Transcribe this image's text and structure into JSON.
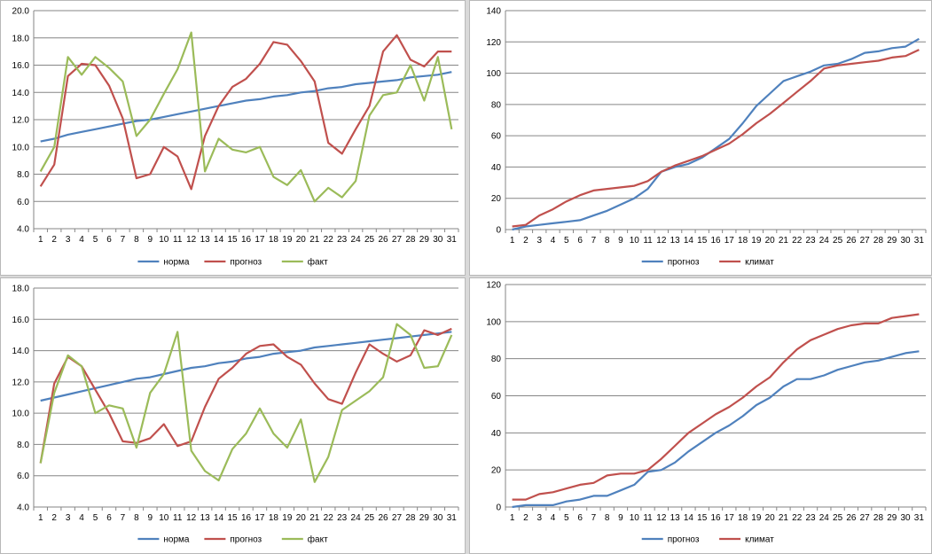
{
  "colors": {
    "blue": "#4f81bd",
    "red": "#c0504d",
    "green": "#9bbb59",
    "grid": "#868686",
    "axis": "#868686"
  },
  "chart_data": [
    {
      "type": "line",
      "categories": [
        1,
        2,
        3,
        4,
        5,
        6,
        7,
        8,
        9,
        10,
        11,
        12,
        13,
        14,
        15,
        16,
        17,
        18,
        19,
        20,
        21,
        22,
        23,
        24,
        25,
        26,
        27,
        28,
        29,
        30,
        31
      ],
      "ylim": [
        4.0,
        20.0
      ],
      "ystep": 2,
      "ydecimals": 1,
      "grid": true,
      "legend": "bottom",
      "yticks": [
        "4.0",
        "6.0",
        "8.0",
        "10.0",
        "12.0",
        "14.0",
        "16.0",
        "18.0",
        "20.0"
      ],
      "series": [
        {
          "name": "норма",
          "color": "#4f81bd",
          "values": [
            10.4,
            10.6,
            10.9,
            11.1,
            11.3,
            11.5,
            11.7,
            11.9,
            12.0,
            12.2,
            12.4,
            12.6,
            12.8,
            13.0,
            13.2,
            13.4,
            13.5,
            13.7,
            13.8,
            14.0,
            14.1,
            14.3,
            14.4,
            14.6,
            14.7,
            14.8,
            14.9,
            15.1,
            15.2,
            15.3,
            15.5
          ]
        },
        {
          "name": "прогноз",
          "color": "#c0504d",
          "values": [
            7.1,
            8.7,
            15.2,
            16.1,
            16.0,
            14.5,
            12.1,
            7.7,
            8.0,
            10.0,
            9.3,
            6.9,
            10.8,
            13.0,
            14.4,
            15.0,
            16.1,
            17.7,
            17.5,
            16.3,
            14.8,
            10.3,
            9.5,
            11.3,
            13.0,
            17.0,
            18.2,
            16.4,
            15.9,
            17.0,
            17.0
          ]
        },
        {
          "name": "факт",
          "color": "#9bbb59",
          "values": [
            8.2,
            10.0,
            16.6,
            15.3,
            16.6,
            15.8,
            14.8,
            10.8,
            12.0,
            13.9,
            15.7,
            18.4,
            8.2,
            10.6,
            9.8,
            9.6,
            10.0,
            7.8,
            7.2,
            8.3,
            6.0,
            7.0,
            6.3,
            7.5,
            12.3,
            13.8,
            14.0,
            16.0,
            13.4,
            16.6,
            11.3
          ]
        }
      ]
    },
    {
      "type": "line",
      "categories": [
        1,
        2,
        3,
        4,
        5,
        6,
        7,
        8,
        9,
        10,
        11,
        12,
        13,
        14,
        15,
        16,
        17,
        18,
        19,
        20,
        21,
        22,
        23,
        24,
        25,
        26,
        27,
        28,
        29,
        30,
        31
      ],
      "ylim": [
        0,
        140
      ],
      "ystep": 20,
      "ydecimals": 0,
      "grid": true,
      "legend": "bottom",
      "yticks": [
        "0",
        "20",
        "40",
        "60",
        "80",
        "100",
        "120",
        "140"
      ],
      "series": [
        {
          "name": "прогноз",
          "color": "#4f81bd",
          "values": [
            0,
            2,
            3,
            4,
            5,
            6,
            9,
            12,
            16,
            20,
            26,
            37,
            40,
            42,
            46,
            52,
            58,
            68,
            79,
            87,
            95,
            98,
            101,
            105,
            106,
            109,
            113,
            114,
            116,
            117,
            122
          ]
        },
        {
          "name": "климат",
          "color": "#c0504d",
          "values": [
            2,
            3,
            9,
            13,
            18,
            22,
            25,
            26,
            27,
            28,
            31,
            37,
            41,
            44,
            47,
            51,
            55,
            61,
            68,
            74,
            81,
            88,
            95,
            103,
            105,
            106,
            107,
            108,
            110,
            111,
            115
          ]
        }
      ]
    },
    {
      "type": "line",
      "categories": [
        1,
        2,
        3,
        4,
        5,
        6,
        7,
        8,
        9,
        10,
        11,
        12,
        13,
        14,
        15,
        16,
        17,
        18,
        19,
        20,
        21,
        22,
        23,
        24,
        25,
        26,
        27,
        28,
        29,
        30,
        31
      ],
      "ylim": [
        4.0,
        18.0
      ],
      "ystep": 2,
      "ydecimals": 1,
      "grid": true,
      "legend": "bottom",
      "yticks": [
        "4.0",
        "6.0",
        "8.0",
        "10.0",
        "12.0",
        "14.0",
        "16.0",
        "18.0"
      ],
      "series": [
        {
          "name": "норма",
          "color": "#4f81bd",
          "values": [
            10.8,
            11.0,
            11.2,
            11.4,
            11.6,
            11.8,
            12.0,
            12.2,
            12.3,
            12.5,
            12.7,
            12.9,
            13.0,
            13.2,
            13.3,
            13.5,
            13.6,
            13.8,
            13.9,
            14.0,
            14.2,
            14.3,
            14.4,
            14.5,
            14.6,
            14.7,
            14.8,
            14.9,
            15.0,
            15.1,
            15.2
          ]
        },
        {
          "name": "прогноз",
          "color": "#c0504d",
          "values": [
            6.8,
            11.9,
            13.6,
            13.0,
            11.5,
            10.0,
            8.2,
            8.1,
            8.4,
            9.3,
            7.9,
            8.2,
            10.4,
            12.2,
            12.9,
            13.8,
            14.3,
            14.4,
            13.6,
            13.1,
            11.9,
            10.9,
            10.6,
            12.6,
            14.4,
            13.8,
            13.3,
            13.7,
            15.3,
            15.0,
            15.4
          ]
        },
        {
          "name": "факт",
          "color": "#9bbb59",
          "values": [
            6.8,
            11.3,
            13.7,
            13.0,
            10.0,
            10.5,
            10.3,
            7.8,
            11.3,
            12.5,
            15.2,
            7.6,
            6.3,
            5.7,
            7.7,
            8.7,
            10.3,
            8.7,
            7.8,
            9.6,
            5.6,
            7.2,
            10.2,
            10.8,
            11.4,
            12.3,
            15.7,
            15.0,
            12.9,
            13.0,
            15.0
          ]
        }
      ]
    },
    {
      "type": "line",
      "categories": [
        1,
        2,
        3,
        4,
        5,
        6,
        7,
        8,
        9,
        10,
        11,
        12,
        13,
        14,
        15,
        16,
        17,
        18,
        19,
        20,
        21,
        22,
        23,
        24,
        25,
        26,
        27,
        28,
        29,
        30,
        31
      ],
      "ylim": [
        0,
        120
      ],
      "ystep": 20,
      "ydecimals": 0,
      "grid": true,
      "legend": "bottom",
      "yticks": [
        "0",
        "20",
        "40",
        "60",
        "80",
        "100",
        "120"
      ],
      "series": [
        {
          "name": "прогноз",
          "color": "#4f81bd",
          "values": [
            0,
            1,
            1,
            1,
            3,
            4,
            6,
            6,
            9,
            12,
            19,
            20,
            24,
            30,
            35,
            40,
            44,
            49,
            55,
            59,
            65,
            69,
            69,
            71,
            74,
            76,
            78,
            79,
            81,
            83,
            84
          ]
        },
        {
          "name": "климат",
          "color": "#c0504d",
          "values": [
            4,
            4,
            7,
            8,
            10,
            12,
            13,
            17,
            18,
            18,
            20,
            26,
            33,
            40,
            45,
            50,
            54,
            59,
            65,
            70,
            78,
            85,
            90,
            93,
            96,
            98,
            99,
            99,
            102,
            103,
            104
          ]
        }
      ]
    }
  ]
}
